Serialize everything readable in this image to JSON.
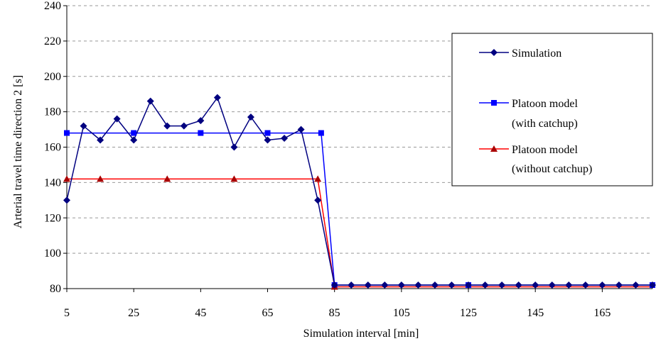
{
  "chart_data": {
    "type": "line",
    "title": "",
    "xlabel": "Simulation interval [min]",
    "ylabel": "Arterial travel time direction 2 [s]",
    "xlim": [
      5,
      180
    ],
    "ylim": [
      80,
      240
    ],
    "x_ticks": [
      5,
      25,
      45,
      65,
      85,
      105,
      125,
      145,
      165
    ],
    "y_ticks": [
      80,
      100,
      120,
      140,
      160,
      180,
      200,
      220,
      240
    ],
    "grid": "horizontal dashed",
    "legend_position": "right",
    "series": [
      {
        "name": "Simulation",
        "color": "#000080",
        "marker": "diamond",
        "points": [
          [
            5,
            130
          ],
          [
            10,
            172
          ],
          [
            15,
            164
          ],
          [
            20,
            176
          ],
          [
            25,
            164
          ],
          [
            30,
            186
          ],
          [
            35,
            172
          ],
          [
            40,
            172
          ],
          [
            45,
            175
          ],
          [
            50,
            188
          ],
          [
            55,
            160
          ],
          [
            60,
            177
          ],
          [
            65,
            164
          ],
          [
            70,
            165
          ],
          [
            75,
            170
          ],
          [
            80,
            130
          ],
          [
            85,
            82
          ],
          [
            90,
            82
          ],
          [
            95,
            82
          ],
          [
            100,
            82
          ],
          [
            105,
            82
          ],
          [
            110,
            82
          ],
          [
            115,
            82
          ],
          [
            120,
            82
          ],
          [
            125,
            82
          ],
          [
            130,
            82
          ],
          [
            135,
            82
          ],
          [
            140,
            82
          ],
          [
            145,
            82
          ],
          [
            150,
            82
          ],
          [
            155,
            82
          ],
          [
            160,
            82
          ],
          [
            165,
            82
          ],
          [
            170,
            82
          ],
          [
            175,
            82
          ],
          [
            180,
            82
          ]
        ],
        "marker_x": [
          5,
          10,
          15,
          20,
          25,
          30,
          35,
          40,
          45,
          50,
          55,
          60,
          65,
          70,
          75,
          80,
          85,
          90,
          95,
          100,
          105,
          110,
          115,
          120,
          125,
          130,
          135,
          140,
          145,
          150,
          155,
          160,
          165,
          170,
          175,
          180
        ]
      },
      {
        "name": "Platoon model\n(with catchup)",
        "color": "#0000ff",
        "marker": "square",
        "points": [
          [
            5,
            168
          ],
          [
            81,
            168
          ],
          [
            85,
            82
          ],
          [
            180,
            82
          ]
        ],
        "marker_points": [
          [
            5,
            168
          ],
          [
            25,
            168
          ],
          [
            45,
            168
          ],
          [
            65,
            168
          ],
          [
            81,
            168
          ],
          [
            85,
            82
          ],
          [
            125,
            82
          ],
          [
            180,
            82
          ]
        ]
      },
      {
        "name": "Platoon model\n(without catchup)",
        "color": "#ff0000",
        "marker": "triangle",
        "points": [
          [
            5,
            142
          ],
          [
            80,
            142
          ],
          [
            85,
            81
          ],
          [
            180,
            81
          ]
        ],
        "marker_points": [
          [
            5,
            142
          ],
          [
            15,
            142
          ],
          [
            35,
            142
          ],
          [
            55,
            142
          ],
          [
            80,
            142
          ],
          [
            85,
            81
          ]
        ]
      }
    ]
  }
}
